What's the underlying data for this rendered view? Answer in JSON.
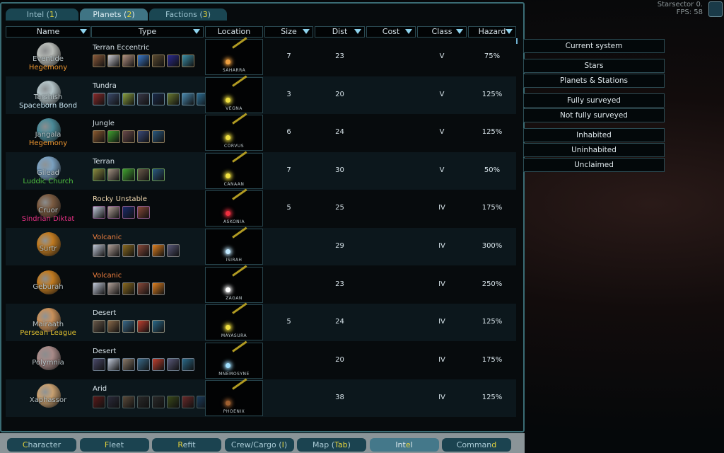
{
  "tabs": [
    {
      "pre": "Intel (",
      "key": "1",
      "post": ")"
    },
    {
      "pre": "Planets (",
      "key": "2",
      "post": ")"
    },
    {
      "pre": "Factions (",
      "key": "3",
      "post": ")"
    }
  ],
  "active_tab": 1,
  "columns": [
    "Name",
    "Type",
    "Location",
    "Size",
    "Dist",
    "Cost",
    "Class",
    "Hazard"
  ],
  "rows": [
    {
      "name": "Eventide",
      "faction": "Hegemony",
      "faction_color": "#f09830",
      "type": "Terran Eccentric",
      "type_color": "#d8e4ea",
      "planet_color": "#b8bcb8",
      "icons": [
        "#8a5a3a",
        "#c8c8d0",
        "#b09080",
        "#3a78c8",
        "#5a4a30",
        "#2a2a90",
        "#3a90a8"
      ],
      "border": "#8a7a5a",
      "location": "SAHARRA",
      "star_color": "#f0a040",
      "size": "7",
      "dist": "23",
      "cost": "",
      "class": "V",
      "hazard": "75%"
    },
    {
      "name": "Tarshish",
      "faction": "Spaceborn Bond",
      "faction_color": "#c8e4f0",
      "type": "Tundra",
      "type_color": "#d8e4ea",
      "planet_color": "#b4c4c8",
      "icons": [
        "#8a2a2a",
        "#3a4a6a",
        "#8aa040",
        "#3a3a4a",
        "#1a2a4a",
        "#6a7a30",
        "#4a8ab0",
        "#2a6a90"
      ],
      "border": "#6a8a9a",
      "location": "VEGNA",
      "star_color": "#f0e040",
      "size": "3",
      "dist": "20",
      "cost": "",
      "class": "V",
      "hazard": "125%"
    },
    {
      "name": "Jangala",
      "faction": "Hegemony",
      "faction_color": "#f09830",
      "type": "Jungle",
      "type_color": "#d8e4ea",
      "planet_color": "#4a8a98",
      "icons": [
        "#8a5a30",
        "#40a030",
        "#6a4a4a",
        "#3a4a7a",
        "#2a5a80"
      ],
      "border": "#8a7a5a",
      "location": "CORVUS",
      "star_color": "#f0e040",
      "size": "6",
      "dist": "24",
      "cost": "",
      "class": "V",
      "hazard": "125%"
    },
    {
      "name": "Gilead",
      "faction": "Luddic Church",
      "faction_color": "#50c040",
      "type": "Terran",
      "type_color": "#d8e4ea",
      "planet_color": "#7aa0c0",
      "icons": [
        "#8a8a40",
        "#a09080",
        "#40a030",
        "#6a5a4a",
        "#2a5a80"
      ],
      "border": "#6a9a5a",
      "location": "CANAAN",
      "star_color": "#f0e040",
      "size": "7",
      "dist": "30",
      "cost": "",
      "class": "V",
      "hazard": "50%"
    },
    {
      "name": "Cruor",
      "faction": "Sindrian Diktat",
      "faction_color": "#e03080",
      "type": "Rocky Unstable",
      "type_color": "#f0d8b0",
      "planet_color": "#7a5a40",
      "icons": [
        "#c0c8d8",
        "#b0a098",
        "#1a2a6a",
        "#8a4a3a"
      ],
      "border": "#8a5a8a",
      "location": "ASKONIA",
      "star_color": "#f03040",
      "size": "5",
      "dist": "25",
      "cost": "",
      "class": "IV",
      "hazard": "175%"
    },
    {
      "name": "Surtr",
      "faction": "",
      "faction_color": "#d8e4ea",
      "type": "Volcanic",
      "type_color": "#f08040",
      "planet_color": "#c07a20",
      "icons": [
        "#c0c8d8",
        "#b0a098",
        "#8a6a20",
        "#8a4a3a",
        "#e08020",
        "#5a5a7a"
      ],
      "border": "#7a7a7a",
      "location": "ISIRAH",
      "star_color": "#c0e8ff",
      "size": "",
      "dist": "29",
      "cost": "",
      "class": "IV",
      "hazard": "300%"
    },
    {
      "name": "Geburah",
      "faction": "",
      "faction_color": "#d8e4ea",
      "type": "Volcanic",
      "type_color": "#f08040",
      "planet_color": "#c07a20",
      "icons": [
        "#c0c8d8",
        "#b0a098",
        "#8a6a20",
        "#8a4a3a",
        "#e08020"
      ],
      "border": "#7a7a7a",
      "location": "ZAGAN",
      "star_color": "#ffffff",
      "size": "",
      "dist": "23",
      "cost": "",
      "class": "IV",
      "hazard": "250%"
    },
    {
      "name": "Mairaath",
      "faction": "Persean League",
      "faction_color": "#e0c030",
      "type": "Desert",
      "type_color": "#d8e4ea",
      "planet_color": "#c8905a",
      "icons": [
        "#6a5a4a",
        "#8a6a4a",
        "#3a6a8a",
        "#c04030",
        "#2a6a8a"
      ],
      "border": "#8a8a7a",
      "location": "MAYASURA",
      "star_color": "#f0e040",
      "size": "5",
      "dist": "24",
      "cost": "",
      "class": "IV",
      "hazard": "125%"
    },
    {
      "name": "Polymnia",
      "faction": "",
      "faction_color": "#d8e4ea",
      "type": "Desert",
      "type_color": "#d8e4ea",
      "planet_color": "#a88a88",
      "icons": [
        "#4a4a6a",
        "#c0c8d8",
        "#8a7a6a",
        "#3a6a8a",
        "#c04030",
        "#5a5a7a",
        "#2a6a8a"
      ],
      "border": "#6a7a8a",
      "location": "MNEMOSYNE",
      "star_color": "#a0e0ff",
      "size": "",
      "dist": "20",
      "cost": "",
      "class": "IV",
      "hazard": "175%"
    },
    {
      "name": "Xaphassor",
      "faction": "",
      "faction_color": "#d8e4ea",
      "type": "Arid",
      "type_color": "#d8e4ea",
      "planet_color": "#c8a070",
      "icons": [
        "#5a1a1a",
        "#2a2a3a",
        "#5a4a3a",
        "#2a2a2a",
        "#2a2a2a",
        "#3a4a1a",
        "#6a2a2a",
        "#1a3a5a"
      ],
      "border": "#4a5a5a",
      "location": "PHOENIX",
      "star_color": "#a06030",
      "size": "",
      "dist": "38",
      "cost": "",
      "class": "IV",
      "hazard": "125%"
    }
  ],
  "filters": [
    "Current system",
    "Stars",
    "Planets & Stations",
    "Fully surveyed",
    "Not fully surveyed",
    "Inhabited",
    "Uninhabited",
    "Unclaimed"
  ],
  "system": {
    "title": "Starsector 0.",
    "fps_label": "FPS:",
    "fps": "58"
  },
  "bottom_nav": [
    {
      "pre": "",
      "key": "C",
      "post": "haracter"
    },
    {
      "pre": "",
      "key": "F",
      "post": "leet"
    },
    {
      "pre": "",
      "key": "R",
      "post": "efit"
    },
    {
      "pre": "Crew/Cargo (",
      "key": "I",
      "post": ")"
    },
    {
      "pre": "Map (",
      "key": "Tab",
      "post": ")"
    },
    {
      "pre": "Int",
      "key": "e",
      "post": "l"
    },
    {
      "pre": "Comman",
      "key": "d",
      "post": ""
    }
  ],
  "active_nav": 5
}
